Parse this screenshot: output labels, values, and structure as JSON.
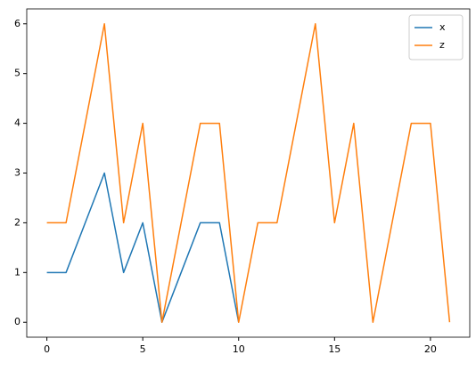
{
  "chart_data": {
    "type": "line",
    "x": [
      0,
      1,
      2,
      3,
      4,
      5,
      6,
      7,
      8,
      9,
      10,
      11,
      12,
      13,
      14,
      15,
      16,
      17,
      18,
      19,
      20,
      21
    ],
    "series": [
      {
        "name": "x",
        "color": "#1f77b4",
        "values": [
          1,
          1,
          2,
          3,
          1,
          2,
          0,
          1,
          2,
          2,
          0,
          null,
          null,
          null,
          null,
          null,
          null,
          null,
          null,
          null,
          null,
          null
        ]
      },
      {
        "name": "z",
        "color": "#ff7f0e",
        "values": [
          2,
          2,
          4,
          6,
          2,
          4,
          0,
          2,
          4,
          4,
          0,
          2,
          2,
          4,
          6,
          2,
          4,
          0,
          2,
          4,
          4,
          0
        ]
      }
    ],
    "xlim": [
      -1.05,
      22.05
    ],
    "xticks": [
      0,
      5,
      10,
      15,
      20
    ],
    "ylim": [
      -0.3,
      6.3
    ],
    "yticks": [
      0,
      1,
      2,
      3,
      4,
      5,
      6
    ],
    "legend": "upper right"
  }
}
